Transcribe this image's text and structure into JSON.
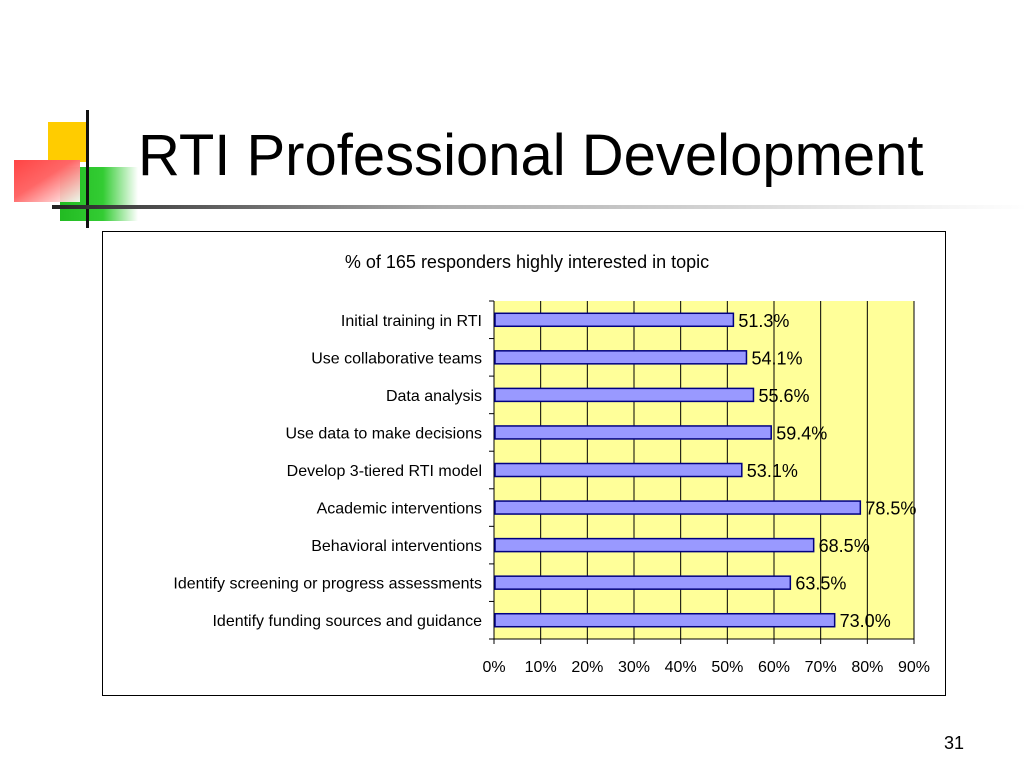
{
  "slide": {
    "title": "RTI Professional Development",
    "page_number": "31"
  },
  "colors": {
    "plot_background": "#ffff99",
    "bar_fill": "#9999ff",
    "bar_stroke": "#000080",
    "accent_yellow": "#ffcc00",
    "accent_green": "#33cc33",
    "accent_red": "#ff4444"
  },
  "chart_data": {
    "type": "bar",
    "orientation": "horizontal",
    "title": "% of 165 responders highly interested in topic",
    "categories": [
      "Initial training in RTI",
      "Use collaborative teams",
      "Data analysis",
      "Use data to make decisions",
      "Develop 3-tiered RTI model",
      "Academic interventions",
      "Behavioral interventions",
      "Identify screening or progress assessments",
      "Identify funding sources and guidance"
    ],
    "values": [
      51.3,
      54.1,
      55.6,
      59.4,
      53.1,
      78.5,
      68.5,
      63.5,
      73.0
    ],
    "data_labels": [
      "51.3%",
      "54.1%",
      "55.6%",
      "59.4%",
      "53.1%",
      "78.5%",
      "68.5%",
      "63.5%",
      "73.0%"
    ],
    "xlim": [
      0,
      90
    ],
    "x_ticks": [
      "0%",
      "10%",
      "20%",
      "30%",
      "40%",
      "50%",
      "60%",
      "70%",
      "80%",
      "90%"
    ],
    "grid": "vertical",
    "legend": "none"
  }
}
